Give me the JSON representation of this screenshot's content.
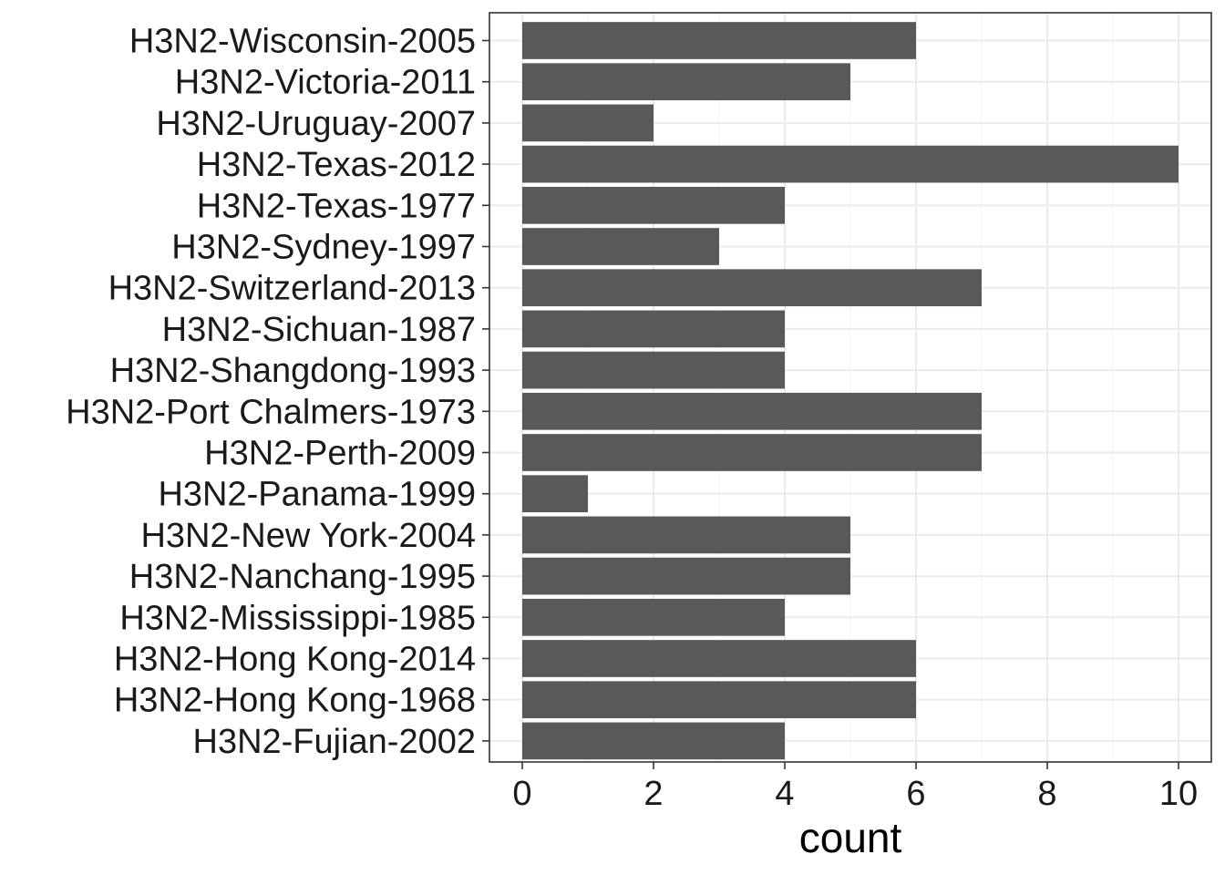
{
  "colors": {
    "bar": "#595959",
    "panel_border": "#333333",
    "grid_major": "#ebebeb",
    "grid_minor": "#f5f5f5",
    "tick": "#333333",
    "background": "#ffffff"
  },
  "chart_data": {
    "type": "bar",
    "orientation": "horizontal",
    "xlabel": "count",
    "ylabel": "",
    "xlim": [
      0,
      10
    ],
    "x_ticks": [
      0,
      2,
      4,
      6,
      8,
      10
    ],
    "grid": true,
    "legend": "none",
    "categories": [
      "H3N2-Wisconsin-2005",
      "H3N2-Victoria-2011",
      "H3N2-Uruguay-2007",
      "H3N2-Texas-2012",
      "H3N2-Texas-1977",
      "H3N2-Sydney-1997",
      "H3N2-Switzerland-2013",
      "H3N2-Sichuan-1987",
      "H3N2-Shangdong-1993",
      "H3N2-Port Chalmers-1973",
      "H3N2-Perth-2009",
      "H3N2-Panama-1999",
      "H3N2-New York-2004",
      "H3N2-Nanchang-1995",
      "H3N2-Mississippi-1985",
      "H3N2-Hong Kong-2014",
      "H3N2-Hong Kong-1968",
      "H3N2-Fujian-2002"
    ],
    "values": [
      6,
      5,
      2,
      10,
      4,
      3,
      7,
      4,
      4,
      7,
      7,
      1,
      5,
      5,
      4,
      6,
      6,
      4
    ]
  }
}
